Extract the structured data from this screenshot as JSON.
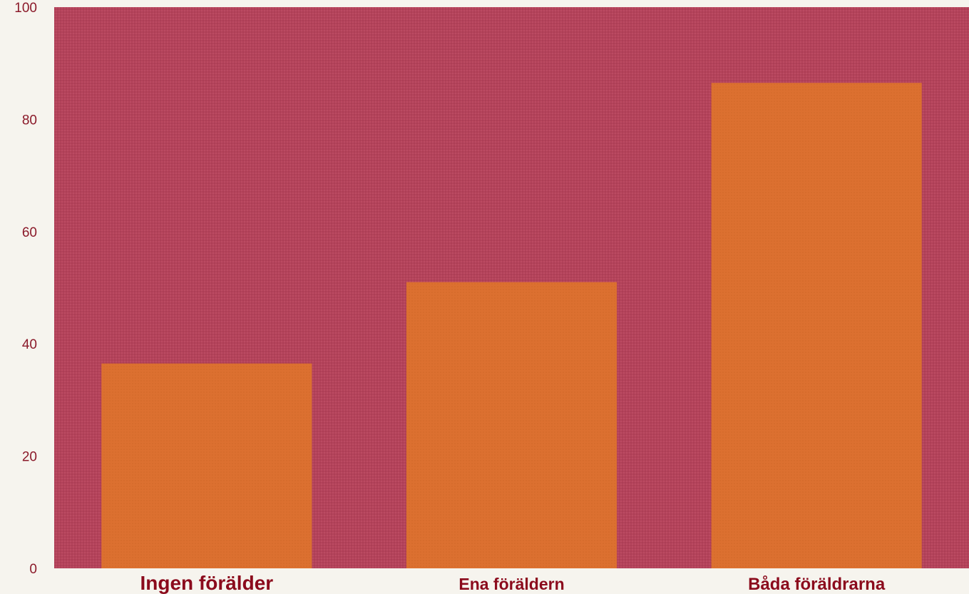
{
  "chart_data": {
    "type": "bar",
    "categories": [
      "Ingen förälder",
      "Ena föräldern",
      "Båda föräldrarna"
    ],
    "values": [
      36.5,
      51,
      86.5
    ],
    "ylim": [
      0,
      100
    ],
    "yticks": [
      0,
      20,
      40,
      60,
      80,
      100
    ],
    "title": "",
    "xlabel": "",
    "ylabel": "",
    "grid": false,
    "colors": {
      "plot_background": "#b4435a",
      "bar": "#dc7030",
      "tick_text": "#8b1a2a",
      "category_text": "#8b0a1c",
      "page_background": "#f6f4ee"
    }
  }
}
